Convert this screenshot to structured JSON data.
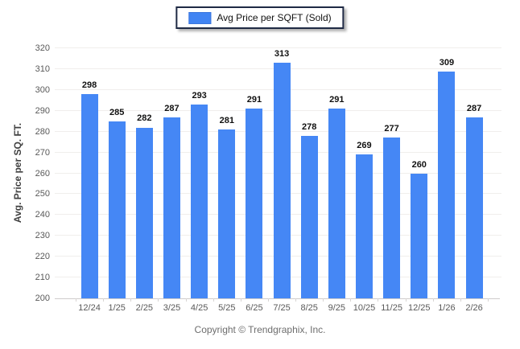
{
  "legend": {
    "label": "Avg Price per SQFT (Sold)",
    "swatch_color": "#4587f5"
  },
  "footer": {
    "text": "Copyright © Trendgraphix, Inc."
  },
  "colors": {
    "bar": "#4587f5",
    "gridline": "#f0eeec",
    "axis_line": "#cfcccc",
    "tick_text": "#595959",
    "value_text": "#111111",
    "footer_text": "#6e6e6e"
  },
  "chart_data": {
    "type": "bar",
    "title": "",
    "xlabel": "",
    "ylabel": "Avg. Price per SQ. FT.",
    "categories": [
      "12/24",
      "1/25",
      "2/25",
      "3/25",
      "4/25",
      "5/25",
      "6/25",
      "7/25",
      "8/25",
      "9/25",
      "10/25",
      "11/25",
      "12/25",
      "1/26",
      "2/26"
    ],
    "values": [
      298,
      285,
      282,
      287,
      293,
      281,
      291,
      313,
      278,
      291,
      269,
      277,
      260,
      309,
      287
    ],
    "series_name": "Avg Price per SQFT (Sold)",
    "ylim": [
      200,
      320
    ],
    "ytick_step": 10,
    "yticks": [
      200,
      210,
      220,
      230,
      240,
      250,
      260,
      270,
      280,
      290,
      300,
      310,
      320
    ],
    "grid": true,
    "legend_position": "top-center",
    "data_labels": true
  }
}
